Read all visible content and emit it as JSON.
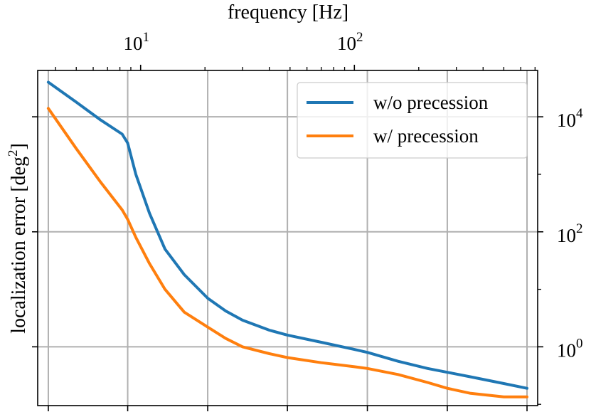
{
  "chart_data": {
    "type": "line",
    "title": "",
    "xlabel": "frequency [Hz]",
    "ylabel": "localization error [deg",
    "ylabel_sup": "2",
    "ylabel_end": "]",
    "x_scale": "log",
    "y_scale": "log",
    "x_tick_labels": [
      {
        "value": 10,
        "base": "10",
        "exp": "1"
      },
      {
        "value": 100,
        "base": "10",
        "exp": "2"
      }
    ],
    "y_tick_labels": [
      {
        "value": 1,
        "base": "10",
        "exp": "0"
      },
      {
        "value": 100,
        "base": "10",
        "exp": "2"
      },
      {
        "value": 10000,
        "base": "10",
        "exp": "4"
      }
    ],
    "x_gridlines": [
      3.7,
      8.7,
      20.6,
      48.6,
      115,
      272,
      642
    ],
    "y_gridlines": [
      1,
      100,
      10000
    ],
    "xlim": [
      3.3,
      720
    ],
    "ylim": [
      0.095,
      64000
    ],
    "grid": true,
    "legend_position": "upper right",
    "series": [
      {
        "name": "w/o precession",
        "color": "#1f77b4",
        "x": [
          3.7,
          5,
          6.5,
          8.2,
          8.7,
          9.5,
          11,
          13,
          16,
          20.6,
          25,
          30,
          40,
          48.6,
          70,
          100,
          115,
          160,
          220,
          272,
          350,
          500,
          642
        ],
        "y": [
          40000,
          18000,
          8800,
          5000,
          3500,
          1000,
          210,
          50,
          18,
          7,
          4.2,
          2.9,
          1.95,
          1.6,
          1.2,
          0.9,
          0.8,
          0.56,
          0.42,
          0.36,
          0.3,
          0.23,
          0.19
        ]
      },
      {
        "name": "w/ precession",
        "color": "#ff7f0e",
        "x": [
          3.7,
          5,
          6.5,
          8.2,
          8.7,
          9.5,
          11,
          13,
          16,
          20.6,
          25,
          30,
          40,
          48.6,
          70,
          100,
          115,
          160,
          220,
          272,
          350,
          500,
          642
        ],
        "y": [
          14000,
          2800,
          730,
          240,
          165,
          80,
          28,
          10,
          4,
          2.2,
          1.4,
          1.0,
          0.76,
          0.65,
          0.53,
          0.45,
          0.42,
          0.33,
          0.24,
          0.19,
          0.155,
          0.135,
          0.135
        ]
      }
    ]
  }
}
